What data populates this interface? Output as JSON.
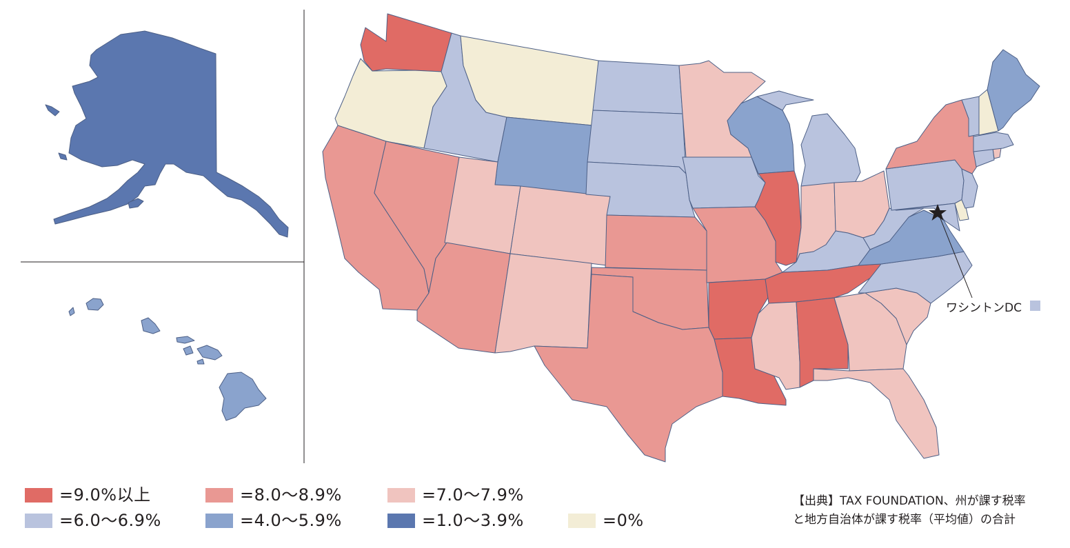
{
  "colors": {
    "c9": "#e06b65",
    "c8": "#e99893",
    "c7": "#f0c4bf",
    "c6": "#b9c3de",
    "c4": "#8aa3cd",
    "c1": "#5b77af",
    "c0": "#f3edd6",
    "border": "#4c5f86"
  },
  "legend": [
    {
      "label": "=9.0%以上",
      "color": "#e06b65"
    },
    {
      "label": "=8.0～8.9%",
      "color": "#e99893"
    },
    {
      "label": "=7.0～7.9%",
      "color": "#f0c4bf"
    },
    {
      "label": "=6.0～6.9%",
      "color": "#b9c3de"
    },
    {
      "label": "=4.0～5.9%",
      "color": "#8aa3cd"
    },
    {
      "label": "=1.0～3.9%",
      "color": "#5b77af"
    },
    {
      "label": "=0%",
      "color": "#f3edd6"
    }
  ],
  "dc": {
    "label": "ワシントンDC",
    "color": "#b9c3de"
  },
  "source": {
    "line1": "【出典】TAX FOUNDATION、州が課す税率",
    "line2": "と地方自治体が課す税率（平均値）の合計"
  }
}
